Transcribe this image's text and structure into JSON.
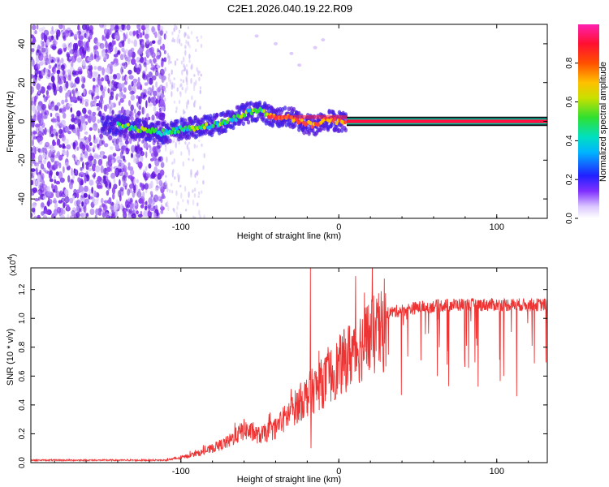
{
  "title": "C2E1.2026.040.19.22.R09",
  "chart_data": [
    {
      "type": "heatmap",
      "title": "C2E1.2026.040.19.22.R09",
      "xlabel": "Height of straight line (km)",
      "ylabel": "Frequency (Hz)",
      "xlim": [
        -195,
        132
      ],
      "ylim": [
        -50,
        50
      ],
      "xticks": [
        -100,
        0,
        100
      ],
      "yticks": [
        -40,
        -20,
        0,
        20,
        40
      ],
      "colorbar": {
        "label": "Normalized spectral amplitude",
        "range": [
          0.0,
          1.0
        ],
        "ticks": [
          0.0,
          0.2,
          0.4,
          0.6,
          0.8
        ],
        "colors": [
          "#ffffff",
          "#dcc8ff",
          "#8030ff",
          "#2020ff",
          "#00b4ff",
          "#00e0c0",
          "#30e030",
          "#c8e000",
          "#ffc000",
          "#ff5000",
          "#ff1030",
          "#ff20b0"
        ]
      },
      "ridge": {
        "x": [
          -140,
          -110,
          -100,
          -90,
          -80,
          -70,
          -60,
          -50,
          -42,
          -30,
          -22,
          -15,
          -10,
          0,
          20,
          60,
          100,
          132
        ],
        "y": [
          -2,
          -6,
          -4,
          -3,
          -2,
          0,
          4,
          6,
          2,
          2,
          -1,
          -2,
          1,
          0,
          0,
          0,
          0,
          0
        ],
        "band_x_start": 5,
        "band_freq_range": [
          -2,
          2
        ]
      }
    },
    {
      "type": "line",
      "xlabel": "Height of straight line (km)",
      "ylabel": "SNR (10 * v/v)",
      "y_multiplier_label": "(x10",
      "y_multiplier_exp": "4",
      "xlim": [
        -195,
        132
      ],
      "ylim": [
        0,
        1.35
      ],
      "xticks": [
        -100,
        0,
        100
      ],
      "yticks": [
        0.0,
        0.2,
        0.4,
        0.6,
        0.8,
        1.0,
        1.2
      ],
      "color": "#ee3333",
      "envelope": {
        "x": [
          -195,
          -110,
          -100,
          -85,
          -70,
          -60,
          -50,
          -40,
          -30,
          -20,
          -10,
          0,
          10,
          20,
          30,
          40,
          50,
          60,
          70,
          100,
          132
        ],
        "y": [
          0.02,
          0.02,
          0.04,
          0.09,
          0.17,
          0.27,
          0.22,
          0.28,
          0.42,
          0.55,
          0.65,
          0.78,
          0.92,
          1.02,
          1.08,
          1.1,
          1.12,
          1.13,
          1.14,
          1.14,
          1.14
        ]
      },
      "spike": {
        "x": -18,
        "y": 1.37
      }
    }
  ]
}
